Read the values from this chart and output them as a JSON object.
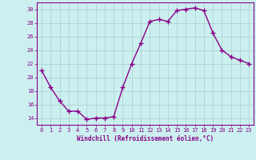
{
  "x": [
    0,
    1,
    2,
    3,
    4,
    5,
    6,
    7,
    8,
    9,
    10,
    11,
    12,
    13,
    14,
    15,
    16,
    17,
    18,
    19,
    20,
    21,
    22,
    23
  ],
  "y": [
    21,
    18.5,
    16.5,
    15,
    15,
    13.8,
    14,
    14,
    14.2,
    18.5,
    22,
    25,
    28.2,
    28.5,
    28.2,
    29.8,
    30,
    30.2,
    29.8,
    26.5,
    24,
    23,
    22.5,
    22
  ],
  "line_color": "#880088",
  "marker": "+",
  "marker_size": 4,
  "marker_lw": 1.0,
  "xlabel": "Windchill (Refroidissement éolien,°C)",
  "xlabel_fontsize": 5.5,
  "bg_color": "#ccf0f0",
  "grid_color": "#aacccc",
  "ylim": [
    13,
    31
  ],
  "xlim": [
    -0.5,
    23.5
  ],
  "yticks": [
    14,
    16,
    18,
    20,
    22,
    24,
    26,
    28,
    30
  ],
  "xticks": [
    0,
    1,
    2,
    3,
    4,
    5,
    6,
    7,
    8,
    9,
    10,
    11,
    12,
    13,
    14,
    15,
    16,
    17,
    18,
    19,
    20,
    21,
    22,
    23
  ],
  "tick_color": "#880088",
  "tick_fontsize": 5.0,
  "linewidth": 1.0
}
